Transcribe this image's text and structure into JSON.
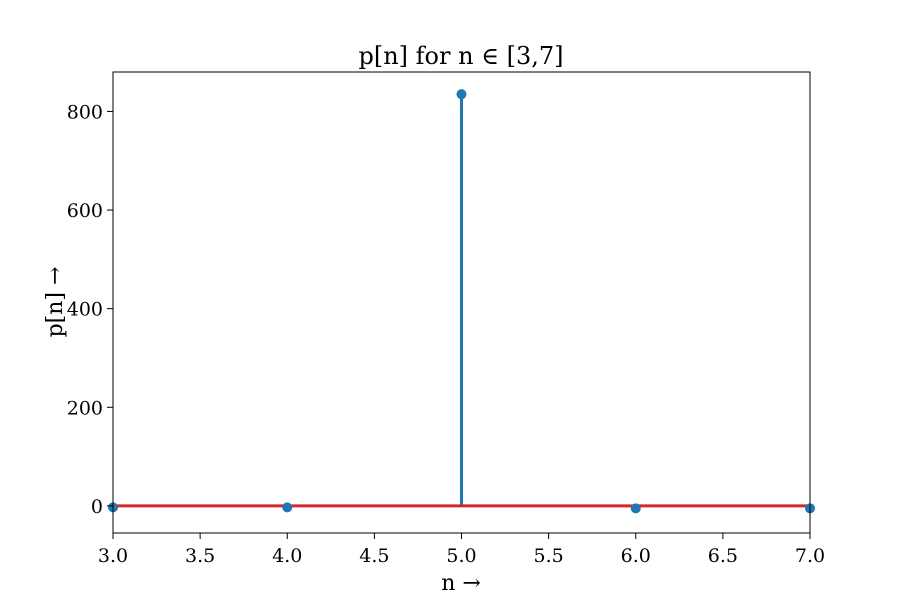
{
  "chart_data": {
    "type": "stem",
    "title": "p[n] for n ∈ [3,7]",
    "xlabel": "n →",
    "ylabel": "p[n] →",
    "xlim": [
      3.0,
      7.0
    ],
    "ylim": [
      -55,
      880
    ],
    "x_ticks": [
      "3.0",
      "3.5",
      "4.0",
      "4.5",
      "5.0",
      "5.5",
      "6.0",
      "6.5",
      "7.0"
    ],
    "y_ticks": [
      "0",
      "200",
      "400",
      "600",
      "800"
    ],
    "x": [
      3,
      4,
      5,
      6,
      7
    ],
    "values": [
      -3,
      -3,
      835,
      -5,
      -5
    ],
    "baseline": 0,
    "grid": false,
    "colors": {
      "stem": "#1f77b4",
      "baseline": "#d62728",
      "axes": "#000000"
    }
  }
}
